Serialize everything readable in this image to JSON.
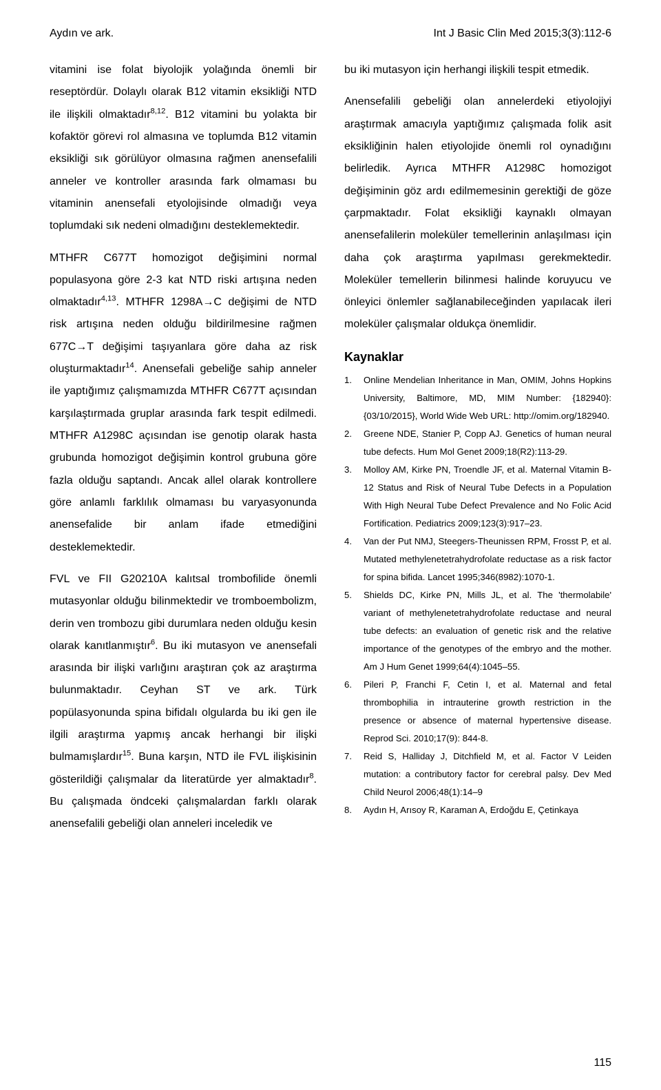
{
  "header": {
    "left": "Aydın ve ark.",
    "right": "Int J Basic Clin Med 2015;3(3):112-6"
  },
  "left_column": {
    "paragraphs": [
      "vitamini ise folat biyolojik yolağında önemli bir reseptördür. Dolaylı olarak B12 vitamin eksikliği NTD ile ilişkili olmaktadır<sup>8,12</sup>. B12 vitamini bu yolakta bir kofaktör görevi rol almasına ve toplumda B12 vitamin eksikliği sık görülüyor olmasına rağmen anensefalili anneler ve kontroller arasında fark olmaması bu vitaminin anensefali etyolojisinde olmadığı veya toplumdaki sık nedeni olmadığını desteklemektedir.",
      "MTHFR C677T homozigot değişimini normal populasyona göre 2-3 kat NTD riski artışına neden olmaktadır<sup>4,13</sup>. MTHFR 1298A→C değişimi de NTD risk artışına neden olduğu bildirilmesine rağmen 677C→T değişimi taşıyanlara göre daha az risk oluşturmaktadır<sup>14</sup>. Anensefali gebeliğe sahip anneler ile yaptığımız çalışmamızda MTHFR C677T açısından karşılaştırmada gruplar arasında fark tespit edilmedi. MTHFR A1298C açısından ise genotip olarak hasta grubunda homozigot değişimin kontrol grubuna göre fazla olduğu saptandı. Ancak allel olarak kontrollere göre anlamlı farklılık olmaması bu varyasyonunda anensefalide bir anlam ifade etmediğini desteklemektedir.",
      "FVL ve FII G20210A kalıtsal trombofilide önemli mutasyonlar olduğu bilinmektedir ve tromboembolizm, derin ven trombozu gibi durumlara neden olduğu kesin olarak kanıtlanmıştır<sup>6</sup>. Bu iki mutasyon ve anensefali arasında bir ilişki varlığını araştıran çok az araştırma bulunmaktadır. Ceyhan ST ve ark. Türk popülasyonunda spina bifidalı olgularda bu iki gen ile ilgili araştırma yapmış ancak herhangi bir ilişki bulmamışlardır<sup>15</sup>. Buna karşın, NTD ile FVL ilişkisinin gösterildiği çalışmalar da literatürde yer almaktadır<sup>8</sup>. Bu çalışmada öndceki çalışmalardan farklı olarak anensefalili gebeliği olan anneleri inceledik ve"
    ]
  },
  "right_column": {
    "paragraphs": [
      "bu iki mutasyon için herhangi ilişkili tespit etmedik.",
      "Anensefalili gebeliği olan annelerdeki etiyolojiyi araştırmak amacıyla yaptığımız çalışmada folik asit eksikliğinin halen etiyolojide önemli rol oynadığını belirledik. Ayrıca MTHFR A1298C homozigot değişiminin göz ardı edilmemesinin gerektiği de göze çarpmaktadır. Folat eksikliği kaynaklı olmayan anensefalilerin moleküler temellerinin anlaşılması için daha çok araştırma yapılması gerekmektedir. Moleküler temellerin bilinmesi halinde koruyucu ve önleyici önlemler sağlanabileceğinden yapılacak ileri moleküler çalışmalar oldukça önemlidir."
    ],
    "refs_heading": "Kaynaklar",
    "references": [
      {
        "n": "1.",
        "t": "Online Mendelian Inheritance in Man, OMIM, Johns Hopkins University, Baltimore, MD, MIM Number: {182940}: {03/10/2015}, World Wide Web URL: http://omim.org/182940."
      },
      {
        "n": "2.",
        "t": "Greene NDE, Stanier P, Copp AJ. Genetics of human neural tube defects. Hum Mol Genet 2009;18(R2):113-29."
      },
      {
        "n": "3.",
        "t": "Molloy AM, Kirke PN, Troendle JF, et al. Maternal Vitamin B-12 Status and Risk of Neural Tube Defects in a Population With High Neural Tube Defect Prevalence and No Folic Acid Fortification. Pediatrics 2009;123(3):917–23."
      },
      {
        "n": "4.",
        "t": "Van der Put NMJ, Steegers-Theunissen RPM, Frosst P, et al. Mutated methylenetetrahydrofolate reductase as a risk factor for spina bifida. Lancet 1995;346(8982):1070-1."
      },
      {
        "n": "5.",
        "t": "Shields DC, Kirke PN, Mills JL, et al. The 'thermolabile' variant of methylenetetrahydrofolate reductase and neural tube defects: an evaluation of genetic risk and the relative importance of the genotypes of the embryo and the mother. Am J Hum Genet 1999;64(4):1045–55."
      },
      {
        "n": "6.",
        "t": "Pileri P, Franchi F, Cetin I, et al. Maternal and fetal thrombophilia in intrauterine growth restriction in the presence or absence of maternal hypertensive disease. Reprod Sci. 2010;17(9): 844-8."
      },
      {
        "n": "7.",
        "t": "Reid S, Halliday J, Ditchfield M, et al. Factor V Leiden mutation: a contributory factor for cerebral palsy. Dev Med Child Neurol 2006;48(1):14–9"
      },
      {
        "n": "8.",
        "t": "Aydın H, Arısoy R, Karaman A, Erdoğdu E, Çetinkaya"
      }
    ]
  },
  "page_number": "115"
}
